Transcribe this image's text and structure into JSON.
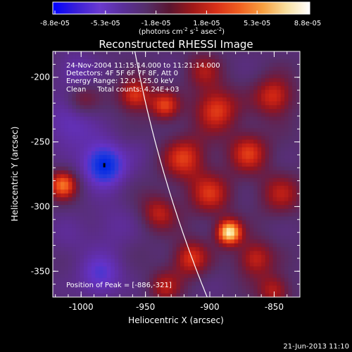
{
  "colorbar": {
    "ticks": [
      "-8.8e-05",
      "-5.3e-05",
      "-1.8e-05",
      "1.8e-05",
      "5.3e-05",
      "8.8e-05"
    ],
    "unit": "(photons cm",
    "unit_exp1": "-2",
    "unit_mid": " s",
    "unit_exp2": "-1",
    "unit_tail": " asec",
    "unit_exp3": "-2",
    "unit_close": ")",
    "colors": [
      "#0000ff",
      "#3a1fd8",
      "#6a3ad0",
      "#5a2f9a",
      "#552e6a",
      "#5a1530",
      "#a01818",
      "#d83018",
      "#f06020",
      "#f8a040",
      "#f8e0a0",
      "#ffffff"
    ]
  },
  "chart_data": {
    "type": "heatmap",
    "title": "Reconstructed RHESSI Image",
    "xlabel": "Heliocentric X (arcsec)",
    "ylabel": "Heliocentric Y (arcsec)",
    "xlim": [
      -1022,
      -830
    ],
    "ylim": [
      -370,
      -180
    ],
    "x_ticks": [
      -1000,
      -950,
      -900,
      -850
    ],
    "y_ticks": [
      -350,
      -300,
      -250,
      -200
    ],
    "x_tick_labels": [
      "-1000",
      "-950",
      "-900",
      "-850"
    ],
    "y_tick_labels": [
      "-350",
      "-300",
      "-250",
      "-200"
    ],
    "peak": [
      -886,
      -321
    ],
    "limb": {
      "center": [
        0,
        0
      ],
      "radius": 975
    },
    "sources": [
      {
        "x": -982,
        "y": -268,
        "v": -1.0,
        "s": 11
      },
      {
        "x": -985,
        "y": -353,
        "v": -0.55,
        "s": 11
      },
      {
        "x": -1008,
        "y": -237,
        "v": -0.4,
        "s": 14
      },
      {
        "x": -958,
        "y": -214,
        "v": 0.6,
        "s": 9
      },
      {
        "x": -935,
        "y": -222,
        "v": 0.55,
        "s": 8
      },
      {
        "x": -1014,
        "y": -283,
        "v": 0.7,
        "s": 8
      },
      {
        "x": -1000,
        "y": -218,
        "v": 0.35,
        "s": 9
      },
      {
        "x": -920,
        "y": -262,
        "v": 0.55,
        "s": 12
      },
      {
        "x": -895,
        "y": -225,
        "v": 0.6,
        "s": 12
      },
      {
        "x": -870,
        "y": -258,
        "v": 0.55,
        "s": 11
      },
      {
        "x": -900,
        "y": -290,
        "v": 0.5,
        "s": 12
      },
      {
        "x": -885,
        "y": -320,
        "v": 1.0,
        "s": 7
      },
      {
        "x": -915,
        "y": -340,
        "v": 0.55,
        "s": 10
      },
      {
        "x": -865,
        "y": -340,
        "v": 0.5,
        "s": 10
      },
      {
        "x": -940,
        "y": -305,
        "v": 0.45,
        "s": 10
      },
      {
        "x": -850,
        "y": -215,
        "v": 0.55,
        "s": 11
      },
      {
        "x": -845,
        "y": -290,
        "v": 0.4,
        "s": 12
      },
      {
        "x": -935,
        "y": -362,
        "v": 0.4,
        "s": 9
      },
      {
        "x": -850,
        "y": -365,
        "v": 0.45,
        "s": 9
      },
      {
        "x": -975,
        "y": -315,
        "v": -0.2,
        "s": 13
      },
      {
        "x": -1010,
        "y": -325,
        "v": -0.15,
        "s": 12
      },
      {
        "x": -955,
        "y": -255,
        "v": -0.1,
        "s": 8
      },
      {
        "x": -905,
        "y": -195,
        "v": 0.35,
        "s": 10
      },
      {
        "x": -1005,
        "y": -195,
        "v": -0.3,
        "s": 10
      }
    ]
  },
  "annotations": {
    "time_range": "24-Nov-2004 11:15:14.000 to 11:21:14.000",
    "detectors": "Detectors: 4F 5F 6F 7F 8F, Att 0",
    "energy": "Energy Range: 12.0 - 25.0 keV",
    "clean": "Clean     Total counts: 4.24E+03",
    "peak": "Position of Peak = [-886,-321]"
  },
  "footer": {
    "timestamp": "21-Jun-2013 11:10"
  }
}
